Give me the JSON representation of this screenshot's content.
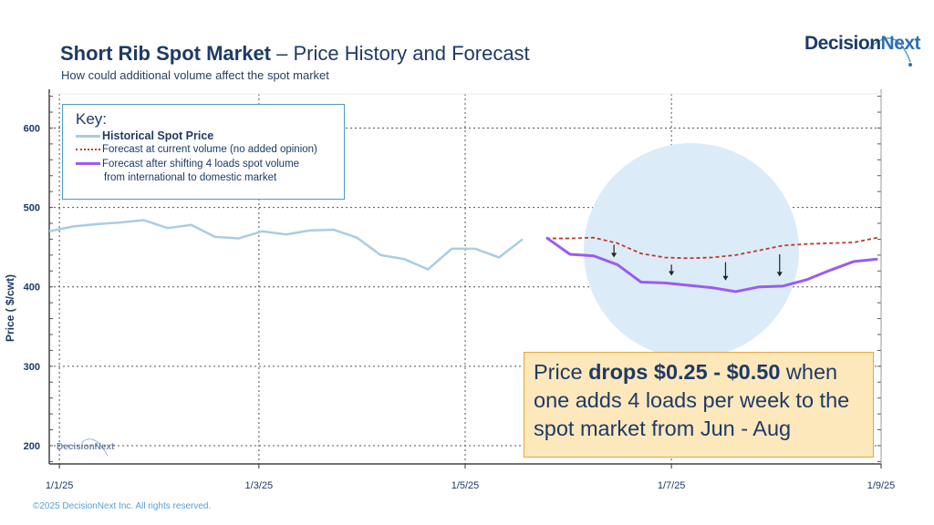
{
  "header": {
    "title_bold": "Short Rib Spot Market",
    "title_rest": " – Price History and Forecast",
    "subtitle": "How could additional volume affect the spot market"
  },
  "logo": {
    "part1": "Decision",
    "part2": "Next"
  },
  "watermark": "DecisionNext",
  "footer": "©2025 DecisionNext Inc. All rights reserved.",
  "key": {
    "title": "Key:",
    "items": [
      {
        "label": "Historical Spot Price",
        "color": "#a9cde3",
        "style": "solid-thick"
      },
      {
        "label": "Forecast at current volume (no added opinion)",
        "color": "#c0392b",
        "style": "dotted"
      },
      {
        "label": "Forecast after shifting 4 loads spot volume",
        "label2": "from international to domestic market",
        "color": "#9b5cf0",
        "style": "solid"
      }
    ]
  },
  "callout": {
    "pre": "Price ",
    "bold": "drops $0.25 - $0.50",
    "post": " when one adds 4 loads per week to the spot market from Jun - Aug"
  },
  "chart_data": {
    "type": "line",
    "title": "",
    "xlabel": "",
    "ylabel": "Price  ( $/cwt)",
    "ylim": [
      177,
      643
    ],
    "xlim": [
      "2024-12-29",
      "2025-09-01"
    ],
    "yticks": [
      200,
      300,
      400,
      500,
      600
    ],
    "xticks": [
      {
        "date": "2025-01-01",
        "label": "1/1/25"
      },
      {
        "date": "2025-03-01",
        "label": "1/3/25"
      },
      {
        "date": "2025-05-01",
        "label": "1/5/25"
      },
      {
        "date": "2025-07-01",
        "label": "1/7/25"
      },
      {
        "date": "2025-09-01",
        "label": "1/9/25"
      }
    ],
    "grid": true,
    "legend": "top-left",
    "series": [
      {
        "name": "Historical Spot Price",
        "color": "#a9cde3",
        "x": [
          "2024-12-29",
          "2025-01-05",
          "2025-01-12",
          "2025-01-19",
          "2025-01-26",
          "2025-02-02",
          "2025-02-09",
          "2025-02-16",
          "2025-02-23",
          "2025-03-02",
          "2025-03-09",
          "2025-03-16",
          "2025-03-23",
          "2025-03-30",
          "2025-04-06",
          "2025-04-13",
          "2025-04-20",
          "2025-04-27",
          "2025-05-04",
          "2025-05-11",
          "2025-05-18"
        ],
        "y": [
          470,
          476,
          479,
          481,
          484,
          474,
          478,
          463,
          461,
          470,
          466,
          471,
          472,
          462,
          440,
          435,
          422,
          448,
          448,
          437,
          460
        ]
      },
      {
        "name": "Forecast at current volume (no added opinion)",
        "color": "#c0392b",
        "x": [
          "2025-05-25",
          "2025-06-01",
          "2025-06-08",
          "2025-06-15",
          "2025-06-22",
          "2025-06-29",
          "2025-07-06",
          "2025-07-13",
          "2025-07-20",
          "2025-07-27",
          "2025-08-03",
          "2025-08-10",
          "2025-08-17",
          "2025-08-24",
          "2025-08-31"
        ],
        "y": [
          461,
          461,
          462,
          455,
          442,
          437,
          436,
          437,
          440,
          446,
          452,
          454,
          455,
          456,
          462
        ]
      },
      {
        "name": "Forecast after shifting 4 loads spot volume from international to domestic market",
        "color": "#9b5cf0",
        "x": [
          "2025-05-25",
          "2025-06-01",
          "2025-06-08",
          "2025-06-15",
          "2025-06-22",
          "2025-06-29",
          "2025-07-06",
          "2025-07-13",
          "2025-07-20",
          "2025-07-27",
          "2025-08-03",
          "2025-08-10",
          "2025-08-17",
          "2025-08-24",
          "2025-08-31"
        ],
        "y": [
          462,
          441,
          439,
          428,
          406,
          405,
          402,
          399,
          394,
          400,
          401,
          409,
          421,
          432,
          435
        ]
      }
    ],
    "annotations": {
      "arrows": [
        {
          "date": "2025-06-14",
          "from": 453,
          "to": 437
        },
        {
          "date": "2025-07-01",
          "from": 428,
          "to": 414
        },
        {
          "date": "2025-07-17",
          "from": 431,
          "to": 408
        },
        {
          "date": "2025-08-02",
          "from": 441,
          "to": 413
        }
      ],
      "highlight_color": "#dcebf8"
    }
  }
}
